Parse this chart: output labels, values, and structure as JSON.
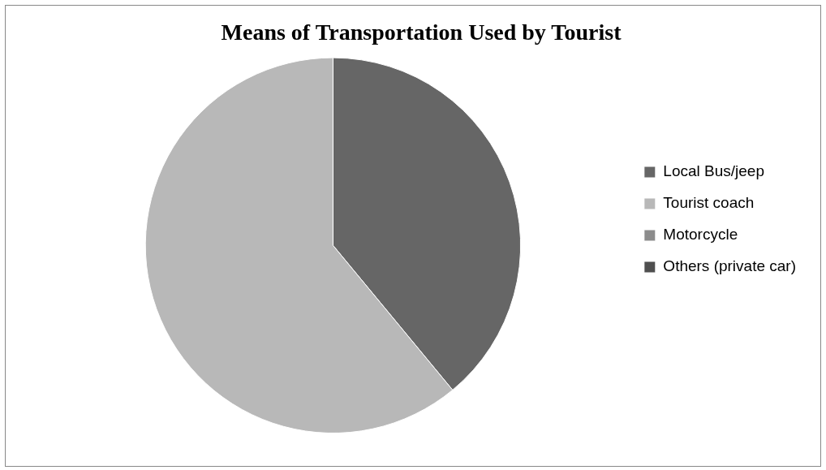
{
  "chart_data": {
    "type": "pie",
    "title": "Means of Transportation Used by Tourist",
    "categories": [
      "Local Bus/jeep",
      "Tourist coach",
      "Motorcycle",
      "Others (private car)"
    ],
    "values": [
      39,
      61,
      0,
      0
    ],
    "colors": [
      "#666666",
      "#b8b8b8",
      "#8c8c8c",
      "#4f4f4f"
    ],
    "legend": "right"
  }
}
